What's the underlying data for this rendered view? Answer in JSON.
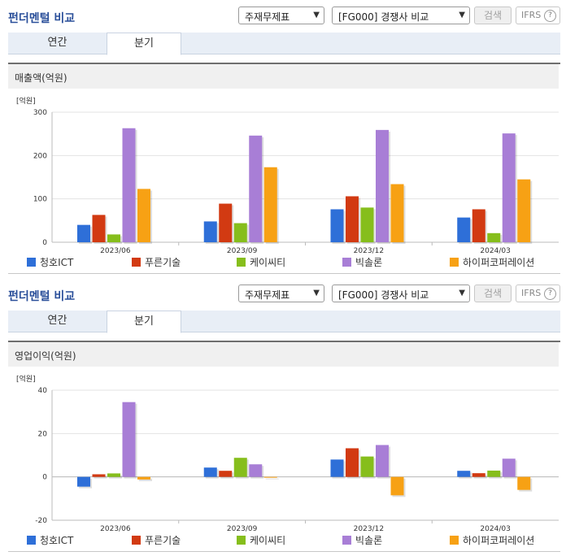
{
  "sections": [
    {
      "header": {
        "title": "펀더멘털 비교",
        "select1": "주재무제표",
        "select2": "[FG000] 경쟁사 비교",
        "search_label": "검색",
        "ifrs_label": "IFRS",
        "help_label": "?"
      },
      "tabs": [
        {
          "label": "연간"
        },
        {
          "label": "분기"
        }
      ],
      "chart_title": "매출액(억원)"
    },
    {
      "header": {
        "title": "펀더멘털 비교",
        "select1": "주재무제표",
        "select2": "[FG000] 경쟁사 비교",
        "search_label": "검색",
        "ifrs_label": "IFRS",
        "help_label": "?"
      },
      "tabs": [
        {
          "label": "연간"
        },
        {
          "label": "분기"
        }
      ],
      "chart_title": "영업이익(억원)"
    }
  ],
  "chart_data": [
    {
      "type": "bar",
      "title": "매출액(억원)",
      "unit": "[억원]",
      "categories": [
        "2023/06",
        "2023/09",
        "2023/12",
        "2024/03"
      ],
      "ylim": [
        0,
        300
      ],
      "yticks": [
        0,
        100,
        200,
        300
      ],
      "grid": true,
      "legend": "bottom",
      "series": [
        {
          "name": "청호ICT",
          "color": "#2e6fd8",
          "values": [
            40,
            48,
            76,
            57
          ]
        },
        {
          "name": "푸른기술",
          "color": "#d23a12",
          "values": [
            63,
            89,
            106,
            76
          ]
        },
        {
          "name": "케이씨티",
          "color": "#86be1c",
          "values": [
            18,
            44,
            80,
            21
          ]
        },
        {
          "name": "빅솔론",
          "color": "#a87ed6",
          "values": [
            263,
            246,
            259,
            251
          ]
        },
        {
          "name": "하이퍼코퍼레이션",
          "color": "#f7a114",
          "values": [
            123,
            173,
            134,
            145
          ]
        }
      ]
    },
    {
      "type": "bar",
      "title": "영업이익(억원)",
      "unit": "[억원]",
      "categories": [
        "2023/06",
        "2023/09",
        "2023/12",
        "2024/03"
      ],
      "ylim": [
        -20,
        40
      ],
      "yticks": [
        -20,
        0,
        20,
        40
      ],
      "grid": true,
      "legend": "bottom",
      "series": [
        {
          "name": "청호ICT",
          "color": "#2e6fd8",
          "values": [
            -4.5,
            4.3,
            8,
            2.8
          ]
        },
        {
          "name": "푸른기술",
          "color": "#d23a12",
          "values": [
            1.2,
            2.8,
            13.2,
            1.7
          ]
        },
        {
          "name": "케이씨티",
          "color": "#86be1c",
          "values": [
            1.6,
            8.8,
            9.4,
            2.9
          ]
        },
        {
          "name": "빅솔론",
          "color": "#a87ed6",
          "values": [
            34.5,
            5.8,
            14.7,
            8.4
          ]
        },
        {
          "name": "하이퍼코퍼레이션",
          "color": "#f7a114",
          "values": [
            -1.2,
            -0.3,
            -8.5,
            -6
          ]
        }
      ]
    }
  ]
}
